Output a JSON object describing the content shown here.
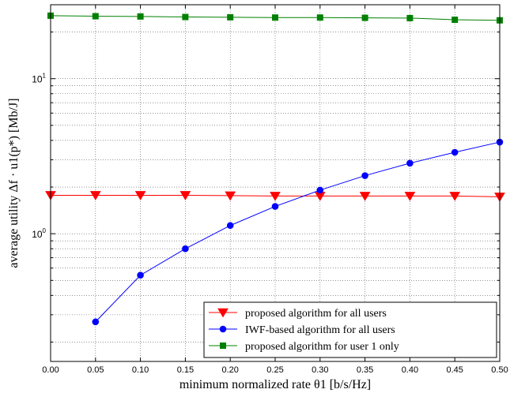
{
  "chart_data": {
    "type": "line",
    "xlabel": "minimum normalized rate θ1 [b/s/Hz]",
    "ylabel": "average utility Δf · u1(p*) [Mb/J]",
    "x": [
      0.0,
      0.05,
      0.1,
      0.15,
      0.2,
      0.25,
      0.3,
      0.35,
      0.4,
      0.45,
      0.5
    ],
    "x_tick_labels": [
      "0.00",
      "0.05",
      "0.10",
      "0.15",
      "0.20",
      "0.25",
      "0.30",
      "0.35",
      "0.40",
      "0.45",
      "0.50"
    ],
    "xlim": [
      0.0,
      0.5
    ],
    "ylim": [
      0.15,
      30
    ],
    "yscale": "log",
    "y_major_ticks": [
      {
        "value": 1,
        "base": "10",
        "exp": "0"
      },
      {
        "value": 10,
        "base": "10",
        "exp": "1"
      }
    ],
    "grid": true,
    "legend_position": "bottom-right",
    "series": [
      {
        "name": "proposed algorithm for all users",
        "color": "#ff0000",
        "marker": "triangle-down",
        "values": [
          1.77,
          1.77,
          1.77,
          1.77,
          1.76,
          1.75,
          1.75,
          1.75,
          1.75,
          1.75,
          1.73
        ]
      },
      {
        "name": "IWF-based algorithm for all users",
        "color": "#0000ff",
        "marker": "circle",
        "values": [
          null,
          0.27,
          0.54,
          0.8,
          1.13,
          1.5,
          1.91,
          2.37,
          2.85,
          3.35,
          3.9
        ]
      },
      {
        "name": "proposed algorithm for user 1 only",
        "color": "#008000",
        "marker": "square",
        "values": [
          25.5,
          25.3,
          25.2,
          25.0,
          24.9,
          24.8,
          24.8,
          24.7,
          24.6,
          24.0,
          23.8
        ]
      }
    ]
  }
}
